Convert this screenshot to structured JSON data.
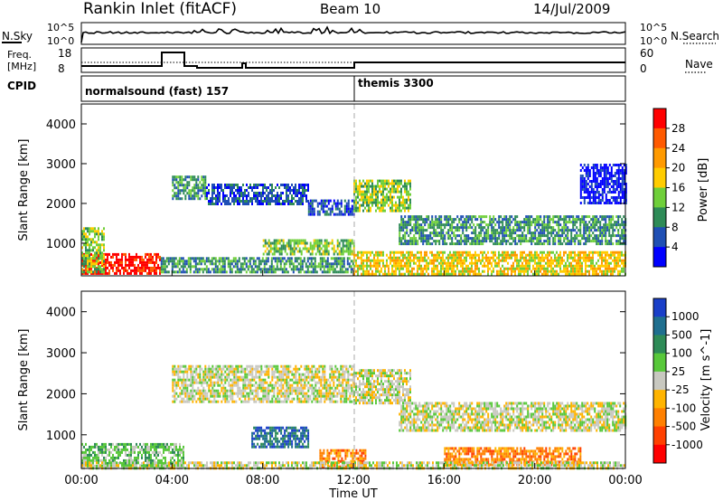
{
  "header": {
    "title": "Rankin Inlet (fitACF)",
    "beam": "Beam 10",
    "date": "14/Jul/2009"
  },
  "noise_panel": {
    "left_label": "N.Sky",
    "right_label": "N.Search",
    "left_ticks": [
      "10^5",
      "10^0"
    ],
    "right_ticks": [
      "10^5",
      "10^0"
    ]
  },
  "freq_panel": {
    "left_label_1": "Freq.",
    "left_label_2": "[MHz]",
    "right_label": "Nave",
    "left_ticks": [
      "18",
      "8"
    ],
    "right_ticks": [
      "60",
      "0"
    ]
  },
  "cpid_panel": {
    "label": "CPID",
    "modes": [
      {
        "name": "normalsound (fast) 157",
        "start_hour": 0
      },
      {
        "name": "themis 3300",
        "start_hour": 12
      }
    ]
  },
  "chart_data": [
    {
      "type": "heatmap",
      "name": "Power",
      "ylabel": "Slant Range [km]",
      "ylim": [
        180,
        4500
      ],
      "yticks": [
        1000,
        2000,
        3000,
        4000
      ],
      "colorbar_label": "Power [dB]",
      "colorbar_ticks": [
        "28",
        "24",
        "20",
        "16",
        "12",
        "8",
        "4"
      ],
      "colorbar_colors": [
        "#ff0000",
        "#ff5a00",
        "#ff9a00",
        "#ffcc00",
        "#6fcf3a",
        "#2e8b57",
        "#1f4fb4",
        "#0000ff"
      ],
      "regions": [
        {
          "t0": 0.0,
          "t1": 3.5,
          "r0": 250,
          "r1": 750,
          "level": 0
        },
        {
          "t0": 0.0,
          "t1": 1.0,
          "r0": 250,
          "r1": 1400,
          "level": 4
        },
        {
          "t0": 4.0,
          "t1": 5.5,
          "r0": 2100,
          "r1": 2700,
          "level": 5
        },
        {
          "t0": 5.5,
          "t1": 10.0,
          "r0": 2000,
          "r1": 2500,
          "level": 6
        },
        {
          "t0": 10.0,
          "t1": 12.0,
          "r0": 1700,
          "r1": 2100,
          "level": 6
        },
        {
          "t0": 8.0,
          "t1": 12.0,
          "r0": 700,
          "r1": 1100,
          "level": 4
        },
        {
          "t0": 3.5,
          "t1": 12.0,
          "r0": 250,
          "r1": 650,
          "level": 5
        },
        {
          "t0": 12.0,
          "t1": 14.5,
          "r0": 1800,
          "r1": 2600,
          "level": 4
        },
        {
          "t0": 12.0,
          "t1": 24.0,
          "r0": 250,
          "r1": 800,
          "level": 3
        },
        {
          "t0": 14.0,
          "t1": 24.0,
          "r0": 1000,
          "r1": 1700,
          "level": 5
        },
        {
          "t0": 22.0,
          "t1": 24.0,
          "r0": 2000,
          "r1": 3000,
          "level": 7
        }
      ]
    },
    {
      "type": "heatmap",
      "name": "Velocity",
      "ylabel": "Slant Range [km]",
      "xlabel": "Time UT",
      "ylim": [
        180,
        4500
      ],
      "yticks": [
        1000,
        2000,
        3000,
        4000
      ],
      "xticks": [
        "00:00",
        "04:00",
        "08:00",
        "12:00",
        "16:00",
        "20:00",
        "00:00"
      ],
      "xlim_hours": [
        0,
        24
      ],
      "colorbar_label": "Velocity [m s^-1]",
      "colorbar_ticks": [
        "1000",
        "500",
        "100",
        "25",
        "-25",
        "-100",
        "-500",
        "-1000"
      ],
      "colorbar_colors": [
        "#1a3fc8",
        "#1f6f8f",
        "#2e8b57",
        "#58c83a",
        "#c8c8c0",
        "#ffb400",
        "#ff8000",
        "#ff4000",
        "#ff0000"
      ],
      "regions": [
        {
          "t0": 0.0,
          "t1": 4.5,
          "r0": 250,
          "r1": 800,
          "level": 3
        },
        {
          "t0": 4.0,
          "t1": 12.0,
          "r0": 1800,
          "r1": 2700,
          "level": 4
        },
        {
          "t0": 7.5,
          "t1": 10.0,
          "r0": 700,
          "r1": 1200,
          "level": 1
        },
        {
          "t0": 10.5,
          "t1": 12.5,
          "r0": 250,
          "r1": 650,
          "level": 6
        },
        {
          "t0": 12.0,
          "t1": 14.5,
          "r0": 1800,
          "r1": 2600,
          "level": 4
        },
        {
          "t0": 14.0,
          "t1": 24.0,
          "r0": 1100,
          "r1": 1800,
          "level": 4
        },
        {
          "t0": 16.0,
          "t1": 22.0,
          "r0": 250,
          "r1": 700,
          "level": 6
        },
        {
          "t0": 0.0,
          "t1": 24.0,
          "r0": 180,
          "r1": 350,
          "level": 4
        }
      ]
    }
  ]
}
